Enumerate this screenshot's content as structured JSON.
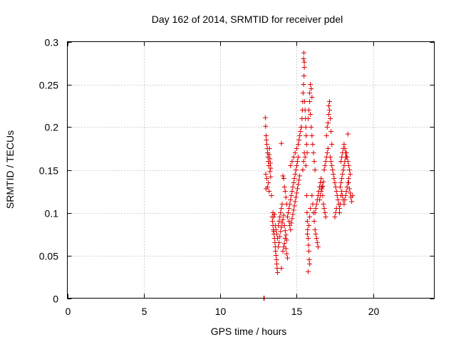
{
  "chart_data": {
    "type": "scatter",
    "title": "Day 162 of 2014, SRMTID for receiver pdel",
    "xlabel": "GPS time / hours",
    "ylabel": "SRMTID / TECUs",
    "xlim": [
      0,
      24
    ],
    "ylim": [
      0,
      0.3
    ],
    "x_ticks": [
      0,
      5,
      10,
      15,
      20
    ],
    "y_ticks": [
      0,
      0.05,
      0.1,
      0.15,
      0.2,
      0.25,
      0.3
    ],
    "x_tick_labels": [
      "0",
      "5",
      "10",
      "15",
      "20"
    ],
    "y_tick_labels": [
      "0",
      "0.05",
      "0.1",
      "0.15",
      "0.2",
      "0.25",
      "0.3"
    ],
    "grid": true,
    "marker": "+",
    "color": "#e00000",
    "series": [
      {
        "name": "SRMTID",
        "points": [
          [
            12.85,
            0.0
          ],
          [
            12.88,
            0.0
          ],
          [
            12.95,
            0.211
          ],
          [
            12.97,
            0.201
          ],
          [
            13.0,
            0.19
          ],
          [
            13.02,
            0.185
          ],
          [
            13.05,
            0.18
          ],
          [
            13.08,
            0.175
          ],
          [
            13.1,
            0.17
          ],
          [
            13.12,
            0.165
          ],
          [
            13.15,
            0.16
          ],
          [
            13.18,
            0.155
          ],
          [
            13.2,
            0.168
          ],
          [
            13.22,
            0.175
          ],
          [
            13.25,
            0.163
          ],
          [
            13.28,
            0.158
          ],
          [
            13.3,
            0.152
          ],
          [
            13.05,
            0.14
          ],
          [
            13.1,
            0.13
          ],
          [
            13.15,
            0.135
          ],
          [
            13.2,
            0.125
          ],
          [
            13.0,
            0.128
          ],
          [
            12.98,
            0.145
          ],
          [
            13.25,
            0.148
          ],
          [
            13.3,
            0.142
          ],
          [
            13.35,
            0.12
          ],
          [
            13.4,
            0.095
          ],
          [
            13.42,
            0.09
          ],
          [
            13.45,
            0.085
          ],
          [
            13.48,
            0.08
          ],
          [
            13.5,
            0.078
          ],
          [
            13.52,
            0.075
          ],
          [
            13.55,
            0.07
          ],
          [
            13.58,
            0.065
          ],
          [
            13.6,
            0.06
          ],
          [
            13.62,
            0.055
          ],
          [
            13.65,
            0.05
          ],
          [
            13.68,
            0.045
          ],
          [
            13.7,
            0.04
          ],
          [
            13.72,
            0.035
          ],
          [
            13.75,
            0.03
          ],
          [
            13.45,
            0.1
          ],
          [
            13.5,
            0.095
          ],
          [
            13.55,
            0.098
          ],
          [
            13.6,
            0.085
          ],
          [
            13.65,
            0.08
          ],
          [
            13.7,
            0.075
          ],
          [
            13.75,
            0.07
          ],
          [
            13.8,
            0.085
          ],
          [
            13.85,
            0.09
          ],
          [
            13.9,
            0.095
          ],
          [
            13.95,
            0.1
          ],
          [
            14.0,
            0.105
          ],
          [
            14.05,
            0.11
          ],
          [
            13.8,
            0.06
          ],
          [
            13.85,
            0.065
          ],
          [
            13.9,
            0.072
          ],
          [
            13.95,
            0.078
          ],
          [
            14.0,
            0.083
          ],
          [
            14.05,
            0.088
          ],
          [
            14.1,
            0.092
          ],
          [
            14.15,
            0.097
          ],
          [
            14.2,
            0.085
          ],
          [
            14.25,
            0.079
          ],
          [
            14.3,
            0.074
          ],
          [
            14.35,
            0.068
          ],
          [
            14.0,
            0.035
          ],
          [
            14.1,
            0.055
          ],
          [
            14.15,
            0.06
          ],
          [
            14.2,
            0.064
          ],
          [
            14.25,
            0.07
          ],
          [
            14.3,
            0.058
          ],
          [
            14.35,
            0.052
          ],
          [
            14.4,
            0.047
          ],
          [
            14.0,
            0.181
          ],
          [
            14.1,
            0.143
          ],
          [
            14.15,
            0.14
          ],
          [
            14.2,
            0.13
          ],
          [
            14.25,
            0.125
          ],
          [
            14.3,
            0.118
          ],
          [
            14.35,
            0.11
          ],
          [
            14.4,
            0.095
          ],
          [
            14.45,
            0.1
          ],
          [
            14.5,
            0.105
          ],
          [
            14.55,
            0.11
          ],
          [
            14.6,
            0.115
          ],
          [
            14.65,
            0.12
          ],
          [
            14.7,
            0.125
          ],
          [
            14.75,
            0.13
          ],
          [
            14.8,
            0.135
          ],
          [
            14.85,
            0.14
          ],
          [
            14.9,
            0.145
          ],
          [
            14.95,
            0.15
          ],
          [
            15.0,
            0.155
          ],
          [
            15.05,
            0.16
          ],
          [
            15.1,
            0.165
          ],
          [
            14.5,
            0.09
          ],
          [
            14.55,
            0.085
          ],
          [
            14.6,
            0.08
          ],
          [
            14.65,
            0.088
          ],
          [
            14.7,
            0.093
          ],
          [
            14.75,
            0.098
          ],
          [
            14.8,
            0.103
          ],
          [
            14.85,
            0.108
          ],
          [
            14.9,
            0.113
          ],
          [
            14.95,
            0.118
          ],
          [
            15.0,
            0.123
          ],
          [
            15.05,
            0.128
          ],
          [
            15.1,
            0.133
          ],
          [
            15.15,
            0.138
          ],
          [
            15.2,
            0.143
          ],
          [
            14.6,
            0.155
          ],
          [
            14.7,
            0.16
          ],
          [
            14.8,
            0.165
          ],
          [
            14.9,
            0.17
          ],
          [
            15.0,
            0.175
          ],
          [
            15.1,
            0.18
          ],
          [
            15.15,
            0.185
          ],
          [
            15.2,
            0.19
          ],
          [
            15.25,
            0.195
          ],
          [
            15.3,
            0.2
          ],
          [
            15.3,
            0.2
          ],
          [
            15.35,
            0.21
          ],
          [
            15.38,
            0.22
          ],
          [
            15.4,
            0.23
          ],
          [
            15.42,
            0.24
          ],
          [
            15.45,
            0.25
          ],
          [
            15.48,
            0.26
          ],
          [
            15.5,
            0.27
          ],
          [
            15.45,
            0.28
          ],
          [
            15.47,
            0.287
          ],
          [
            15.5,
            0.276
          ],
          [
            15.52,
            0.23
          ],
          [
            15.55,
            0.22
          ],
          [
            15.58,
            0.21
          ],
          [
            15.6,
            0.2
          ],
          [
            15.62,
            0.19
          ],
          [
            15.65,
            0.18
          ],
          [
            15.68,
            0.17
          ],
          [
            15.4,
            0.15
          ],
          [
            15.45,
            0.16
          ],
          [
            15.5,
            0.17
          ],
          [
            15.55,
            0.165
          ],
          [
            15.6,
            0.155
          ],
          [
            15.65,
            0.12
          ],
          [
            15.68,
            0.1
          ],
          [
            15.7,
            0.09
          ],
          [
            15.72,
            0.08
          ],
          [
            15.75,
            0.07
          ],
          [
            15.78,
            0.062
          ],
          [
            15.8,
            0.055
          ],
          [
            15.82,
            0.045
          ],
          [
            15.85,
            0.04
          ],
          [
            15.75,
            0.031
          ],
          [
            15.7,
            0.075
          ],
          [
            15.8,
            0.085
          ],
          [
            15.85,
            0.095
          ],
          [
            15.9,
            0.105
          ],
          [
            15.75,
            0.21
          ],
          [
            15.8,
            0.22
          ],
          [
            15.85,
            0.24
          ],
          [
            15.9,
            0.25
          ],
          [
            15.95,
            0.245
          ],
          [
            16.0,
            0.235
          ],
          [
            15.85,
            0.23
          ],
          [
            15.9,
            0.215
          ],
          [
            15.95,
            0.2
          ],
          [
            16.0,
            0.19
          ],
          [
            16.05,
            0.18
          ],
          [
            16.1,
            0.17
          ],
          [
            16.15,
            0.16
          ],
          [
            16.2,
            0.15
          ],
          [
            16.0,
            0.12
          ],
          [
            16.05,
            0.11
          ],
          [
            16.1,
            0.1
          ],
          [
            16.15,
            0.09
          ],
          [
            16.2,
            0.08
          ],
          [
            16.25,
            0.075
          ],
          [
            16.3,
            0.07
          ],
          [
            16.35,
            0.065
          ],
          [
            16.4,
            0.06
          ],
          [
            16.2,
            0.1
          ],
          [
            16.25,
            0.105
          ],
          [
            16.3,
            0.11
          ],
          [
            16.35,
            0.115
          ],
          [
            16.4,
            0.12
          ],
          [
            16.45,
            0.125
          ],
          [
            16.5,
            0.13
          ],
          [
            16.55,
            0.135
          ],
          [
            16.6,
            0.14
          ],
          [
            16.65,
            0.13
          ],
          [
            16.7,
            0.12
          ],
          [
            16.75,
            0.11
          ],
          [
            16.8,
            0.105
          ],
          [
            16.85,
            0.1
          ],
          [
            16.9,
            0.095
          ],
          [
            16.5,
            0.115
          ],
          [
            16.55,
            0.12
          ],
          [
            16.6,
            0.125
          ],
          [
            16.65,
            0.128
          ],
          [
            16.7,
            0.131
          ],
          [
            16.75,
            0.136
          ],
          [
            16.8,
            0.15
          ],
          [
            16.85,
            0.155
          ],
          [
            16.9,
            0.16
          ],
          [
            16.95,
            0.165
          ],
          [
            17.0,
            0.17
          ],
          [
            17.05,
            0.175
          ],
          [
            16.95,
            0.19
          ],
          [
            17.0,
            0.2
          ],
          [
            17.05,
            0.205
          ],
          [
            17.1,
            0.215
          ],
          [
            17.15,
            0.22
          ],
          [
            17.1,
            0.225
          ],
          [
            17.15,
            0.23
          ],
          [
            17.2,
            0.21
          ],
          [
            17.25,
            0.195
          ],
          [
            17.3,
            0.18
          ],
          [
            17.2,
            0.165
          ],
          [
            17.25,
            0.16
          ],
          [
            17.3,
            0.155
          ],
          [
            17.35,
            0.15
          ],
          [
            17.4,
            0.145
          ],
          [
            17.45,
            0.14
          ],
          [
            17.5,
            0.135
          ],
          [
            17.55,
            0.13
          ],
          [
            17.6,
            0.125
          ],
          [
            17.65,
            0.12
          ],
          [
            17.7,
            0.115
          ],
          [
            17.75,
            0.11
          ],
          [
            17.8,
            0.105
          ],
          [
            17.5,
            0.095
          ],
          [
            17.55,
            0.1
          ],
          [
            17.6,
            0.105
          ],
          [
            17.85,
            0.13
          ],
          [
            17.9,
            0.135
          ],
          [
            17.95,
            0.14
          ],
          [
            18.0,
            0.145
          ],
          [
            18.05,
            0.15
          ],
          [
            18.1,
            0.155
          ],
          [
            18.15,
            0.16
          ],
          [
            18.2,
            0.165
          ],
          [
            18.25,
            0.17
          ],
          [
            18.3,
            0.165
          ],
          [
            18.35,
            0.16
          ],
          [
            18.4,
            0.155
          ],
          [
            18.45,
            0.15
          ],
          [
            18.5,
            0.145
          ],
          [
            18.35,
            0.192
          ],
          [
            18.4,
            0.135
          ],
          [
            18.45,
            0.128
          ],
          [
            18.5,
            0.123
          ],
          [
            18.55,
            0.118
          ],
          [
            18.6,
            0.113
          ],
          [
            18.65,
            0.12
          ],
          [
            17.8,
            0.1
          ],
          [
            17.85,
            0.11
          ],
          [
            17.9,
            0.12
          ],
          [
            17.95,
            0.125
          ],
          [
            18.0,
            0.12
          ],
          [
            18.05,
            0.115
          ],
          [
            18.1,
            0.11
          ],
          [
            18.15,
            0.115
          ],
          [
            18.2,
            0.12
          ],
          [
            18.25,
            0.125
          ],
          [
            18.3,
            0.13
          ],
          [
            18.35,
            0.135
          ],
          [
            18.4,
            0.14
          ],
          [
            17.9,
            0.16
          ],
          [
            17.95,
            0.165
          ],
          [
            18.0,
            0.17
          ],
          [
            18.05,
            0.175
          ],
          [
            18.1,
            0.18
          ],
          [
            18.15,
            0.175
          ],
          [
            18.2,
            0.17
          ],
          [
            18.25,
            0.165
          ]
        ]
      }
    ]
  }
}
